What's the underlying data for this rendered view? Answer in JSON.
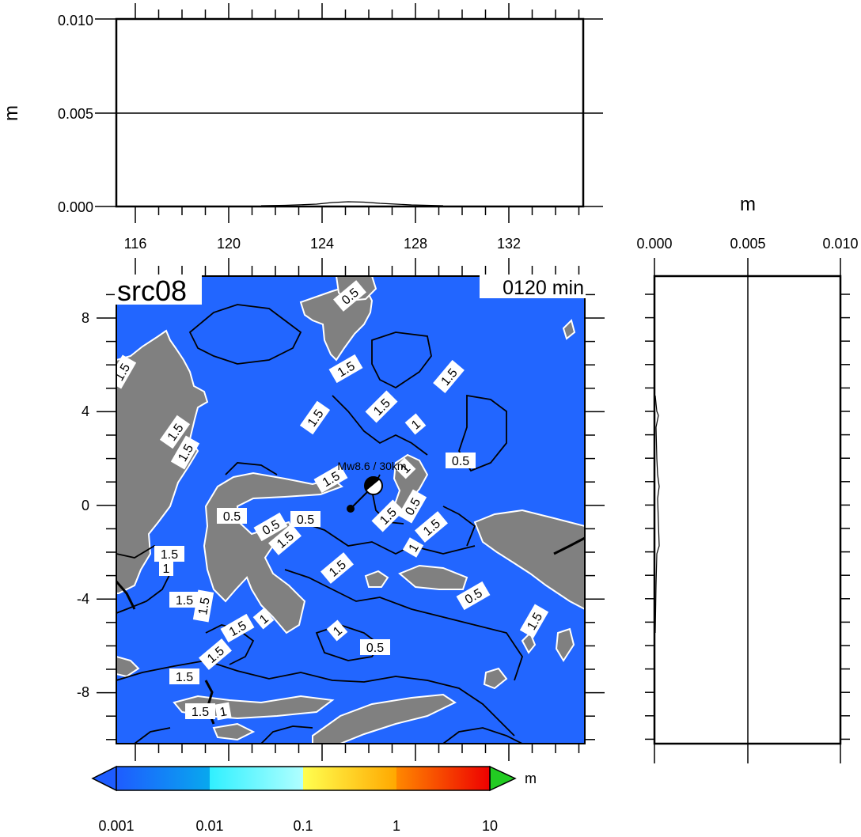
{
  "panel": {
    "source_label": "src08",
    "time_label": "0120 min",
    "event_label": "Mw8.6 / 30km"
  },
  "top_profile": {
    "y_unit": "m",
    "y_ticks": [
      "0.000",
      "0.005",
      "0.010"
    ],
    "x_ticks": [
      "116",
      "120",
      "124",
      "128",
      "132"
    ]
  },
  "right_profile": {
    "x_unit": "m",
    "x_ticks": [
      "0.000",
      "0.005",
      "0.010"
    ]
  },
  "map": {
    "y_ticks": [
      "8",
      "4",
      "0",
      "-4",
      "-8"
    ],
    "ocean_color": "#2266ff",
    "land_color": "#808080",
    "contour_labels": [
      "0.5",
      "1.5",
      "1.5",
      "1.5",
      "1.5",
      "1",
      "1.5",
      "1.5",
      "1.5",
      "0.5",
      "1.5",
      "1",
      "0.5",
      "0.5",
      "0.5",
      "1.5",
      "1.5",
      "1",
      "1.5",
      "0.5",
      "1.5",
      "1",
      "1.5",
      "1.5",
      "1.5",
      "1.5",
      "1",
      "1",
      "0.5",
      "0.5",
      "1.5",
      "1.5",
      "1.5",
      "1.5",
      "1"
    ]
  },
  "colorbar": {
    "unit": "m",
    "tick_labels": [
      "0.001",
      "0.01",
      "0.1",
      "1",
      "10"
    ],
    "colors": [
      "#1e6ef0",
      "#30e8ff",
      "#ffd530",
      "#ff4000",
      "#22cc22"
    ]
  }
}
